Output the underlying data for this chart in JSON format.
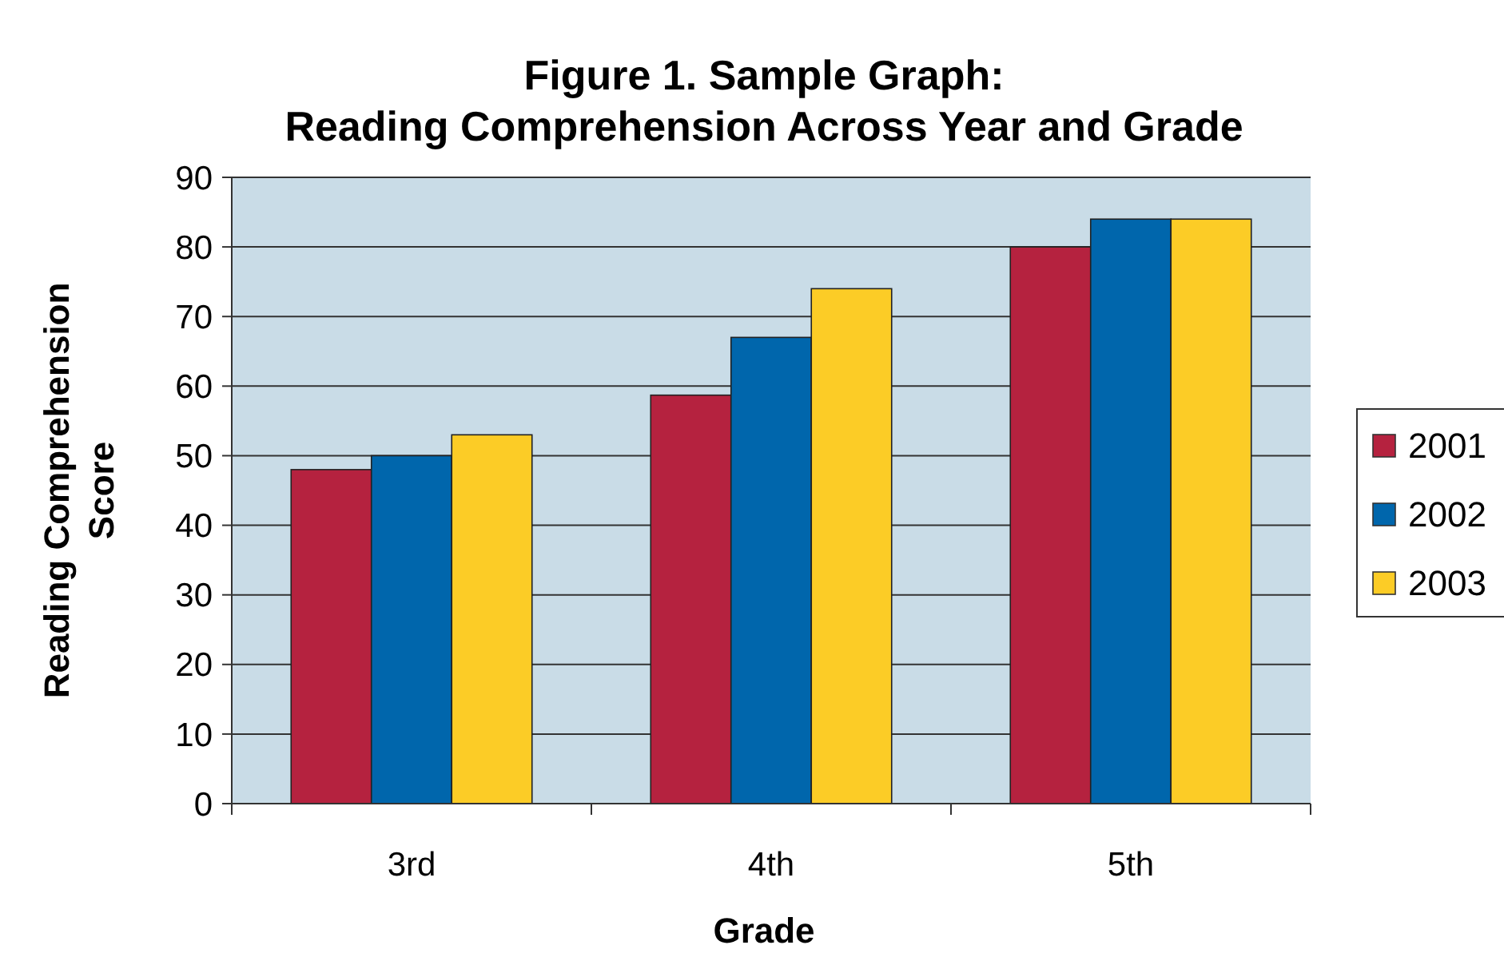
{
  "chart_data": {
    "type": "bar",
    "title": "Figure 1.   Sample Graph:",
    "subtitle": "Reading Comprehension Across Year and Grade",
    "xlabel": "Grade",
    "ylabel": "Reading Comprehension Score",
    "categories": [
      "3rd",
      "4th",
      "5th"
    ],
    "series": [
      {
        "name": "2001",
        "color": "#b5223f",
        "values": [
          48,
          58.7,
          80
        ]
      },
      {
        "name": "2002",
        "color": "#0066ac",
        "values": [
          50,
          67,
          84
        ]
      },
      {
        "name": "2003",
        "color": "#fccc26",
        "values": [
          53,
          74,
          84
        ]
      }
    ],
    "ylim": [
      0,
      90
    ],
    "yticks": [
      0,
      10,
      20,
      30,
      40,
      50,
      60,
      70,
      80,
      90
    ],
    "grid": "y",
    "legend": "right"
  }
}
